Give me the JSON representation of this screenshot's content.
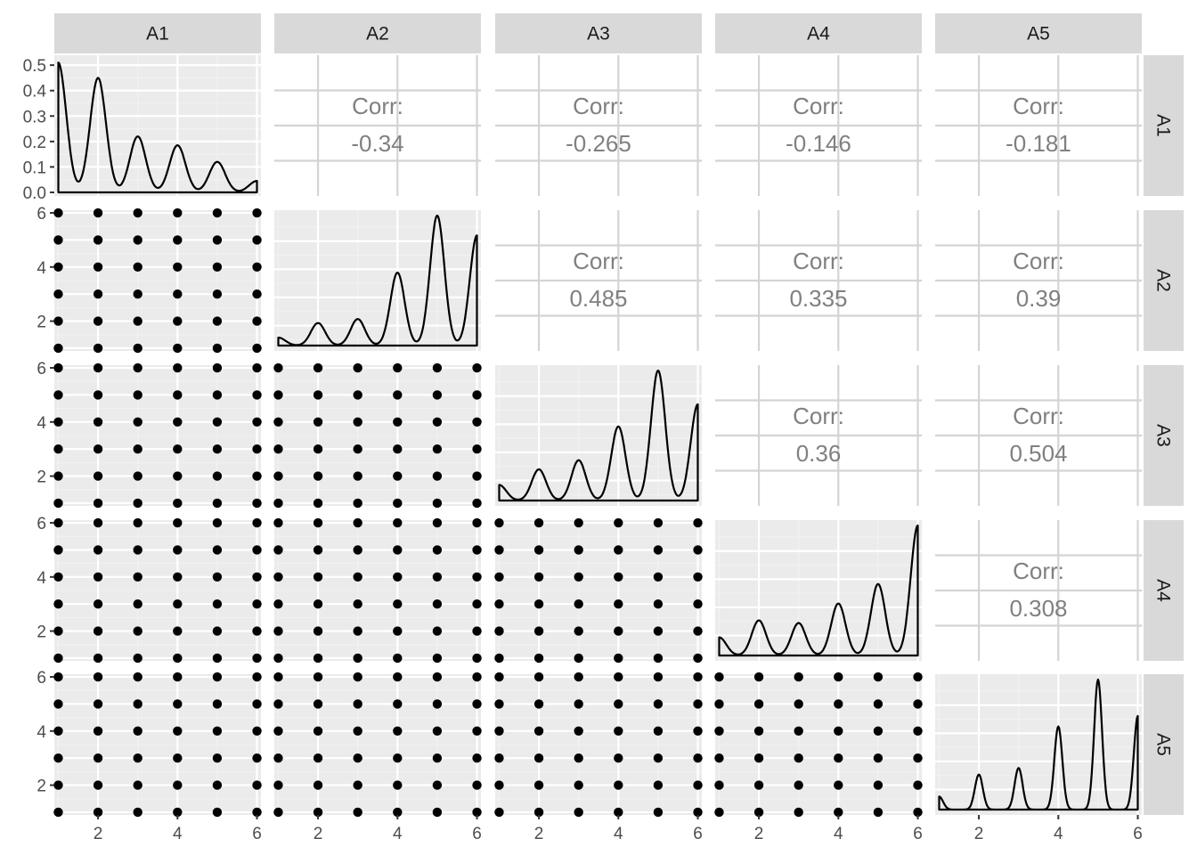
{
  "chart_data": {
    "type": "scatterplot-matrix",
    "variables": [
      "A1",
      "A2",
      "A3",
      "A4",
      "A5"
    ],
    "x_range": [
      0.9,
      6.1
    ],
    "x_ticks": [
      2,
      4,
      6
    ],
    "y_ticks": [
      2,
      4,
      6
    ],
    "corr_label": "Corr:",
    "correlations": [
      {
        "row": "A1",
        "col": "A2",
        "value": "-0.34"
      },
      {
        "row": "A1",
        "col": "A3",
        "value": "-0.265"
      },
      {
        "row": "A1",
        "col": "A4",
        "value": "-0.146"
      },
      {
        "row": "A1",
        "col": "A5",
        "value": "-0.181"
      },
      {
        "row": "A2",
        "col": "A3",
        "value": "0.485"
      },
      {
        "row": "A2",
        "col": "A4",
        "value": "0.335"
      },
      {
        "row": "A2",
        "col": "A5",
        "value": "0.39"
      },
      {
        "row": "A3",
        "col": "A4",
        "value": "0.36"
      },
      {
        "row": "A3",
        "col": "A5",
        "value": "0.504"
      },
      {
        "row": "A4",
        "col": "A5",
        "value": "0.308"
      }
    ],
    "density_y_ticks": [
      "0.0",
      "0.1",
      "0.2",
      "0.3",
      "0.4",
      "0.5"
    ],
    "density_ylim": [
      0,
      0.525
    ],
    "densities": {
      "A1": {
        "peaks": [
          0.51,
          0.45,
          0.22,
          0.185,
          0.12,
          0.045
        ],
        "bw": 0.2
      },
      "A2": {
        "peaks": [
          0.06,
          0.17,
          0.2,
          0.55,
          0.98,
          0.83
        ],
        "bw": 0.18
      },
      "A3": {
        "peaks": [
          0.12,
          0.24,
          0.31,
          0.57,
          1.0,
          0.74
        ],
        "bw": 0.18
      },
      "A4": {
        "peaks": [
          0.14,
          0.27,
          0.25,
          0.4,
          0.55,
          1.0
        ],
        "bw": 0.18
      },
      "A5": {
        "peaks": [
          0.1,
          0.27,
          0.32,
          0.64,
          1.0,
          0.72
        ],
        "bw": 0.1
      }
    },
    "scatter_values": [
      1,
      2,
      3,
      4,
      5,
      6
    ],
    "grid": true,
    "colors": {
      "panel_bg": "#ebebeb",
      "strip_bg": "#d9d9d9",
      "grid_major": "#ffffff",
      "grid_minor": "#f2f2f2",
      "corr_grid": "#d4d4d4",
      "point": "#000000",
      "line": "#000000"
    }
  }
}
